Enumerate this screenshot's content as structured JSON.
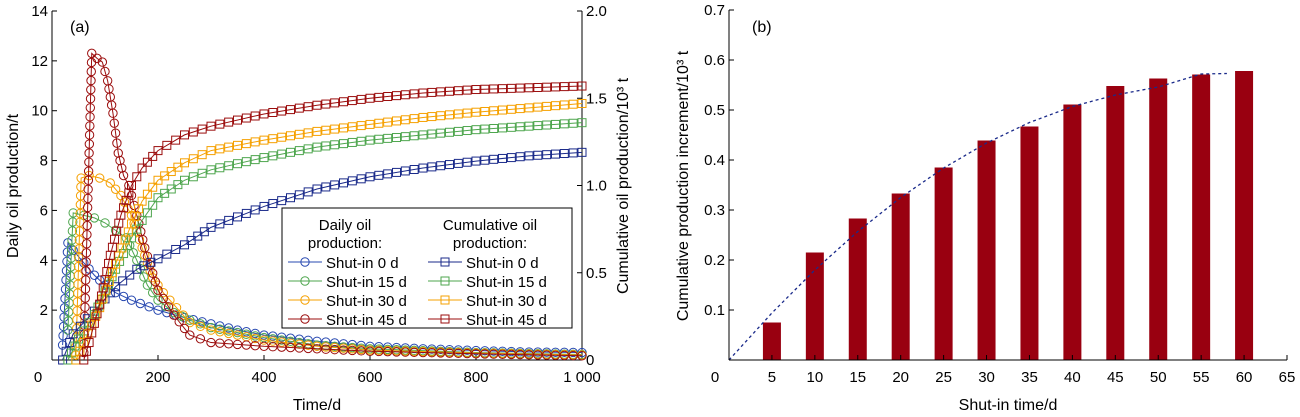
{
  "chart_data": [
    {
      "type": "line",
      "panel_label": "(a)",
      "xlabel": "Time/d",
      "ylabel": "Daily oil production/t",
      "y2label": "Cumulative oil production/10³ t",
      "xlim": [
        0,
        1000
      ],
      "ylim": [
        0,
        14
      ],
      "y2lim": [
        0,
        2.0
      ],
      "xticks": [
        "0",
        "200",
        "400",
        "600",
        "800",
        "1 000"
      ],
      "xtick_values": [
        0,
        200,
        400,
        600,
        800,
        1000
      ],
      "yticks": [
        "2",
        "4",
        "6",
        "8",
        "10",
        "12",
        "14"
      ],
      "ytick_values": [
        2,
        4,
        6,
        8,
        10,
        12,
        14
      ],
      "y2ticks": [
        "0",
        "0.5",
        "1.0",
        "1.5",
        "2.0"
      ],
      "y2tick_values": [
        0,
        0.5,
        1.0,
        1.5,
        2.0
      ],
      "grid": false,
      "legend": {
        "placement": "center-right",
        "daily_title_1": "Daily oil",
        "daily_title_2": "production:",
        "cum_title_1": "Cumulative oil",
        "cum_title_2": "production:"
      },
      "series": [
        {
          "name": "Shut-in 0 d",
          "group": "daily",
          "axis": "left",
          "marker": "circle",
          "color": "#2748b0",
          "x": [
            20,
            30,
            40,
            60,
            80,
            100,
            120,
            150,
            200,
            250,
            300,
            350,
            400,
            500,
            600,
            700,
            800,
            900,
            1000
          ],
          "y": [
            0.6,
            4.7,
            4.4,
            3.9,
            3.4,
            3.0,
            2.7,
            2.4,
            2.0,
            1.7,
            1.45,
            1.2,
            1.0,
            0.75,
            0.55,
            0.45,
            0.38,
            0.32,
            0.3
          ]
        },
        {
          "name": "Shut-in 15 d",
          "group": "daily",
          "axis": "left",
          "marker": "circle",
          "color": "#4ea64e",
          "x": [
            30,
            40,
            60,
            80,
            100,
            120,
            140,
            160,
            180,
            200,
            230,
            260,
            300,
            400,
            500,
            600,
            800,
            1000
          ],
          "y": [
            1.2,
            5.9,
            5.8,
            5.7,
            5.5,
            5.2,
            4.9,
            4.0,
            3.0,
            2.4,
            1.9,
            1.6,
            1.3,
            0.9,
            0.6,
            0.45,
            0.3,
            0.22
          ]
        },
        {
          "name": "Shut-in 30 d",
          "group": "daily",
          "axis": "left",
          "marker": "circle",
          "color": "#f5a000",
          "x": [
            45,
            55,
            70,
            90,
            110,
            130,
            150,
            170,
            190,
            210,
            235,
            260,
            300,
            400,
            500,
            600,
            800,
            1000
          ],
          "y": [
            0.2,
            7.3,
            7.4,
            7.3,
            7.1,
            6.6,
            5.8,
            4.5,
            3.3,
            2.7,
            2.1,
            1.5,
            1.2,
            0.8,
            0.55,
            0.4,
            0.28,
            0.2
          ]
        },
        {
          "name": "Shut-in 45 d",
          "group": "daily",
          "axis": "left",
          "marker": "circle",
          "color": "#9b0d0d",
          "x": [
            60,
            75,
            85,
            95,
            105,
            115,
            125,
            135,
            145,
            160,
            175,
            200,
            230,
            260,
            300,
            400,
            500,
            600,
            800,
            1000
          ],
          "y": [
            0.3,
            12.3,
            12.1,
            11.95,
            11.2,
            9.9,
            8.3,
            7.4,
            7.0,
            5.8,
            4.5,
            2.8,
            1.8,
            1.0,
            0.7,
            0.55,
            0.45,
            0.35,
            0.25,
            0.17
          ]
        },
        {
          "name": "Shut-in 0 d",
          "group": "cumulative",
          "axis": "right",
          "marker": "square",
          "color": "#1a2a8a",
          "x": [
            20,
            40,
            80,
            120,
            160,
            200,
            250,
            300,
            400,
            500,
            600,
            700,
            800,
            900,
            1000
          ],
          "y": [
            0,
            0.15,
            0.28,
            0.42,
            0.52,
            0.58,
            0.66,
            0.76,
            0.88,
            0.98,
            1.05,
            1.1,
            1.14,
            1.17,
            1.19
          ]
        },
        {
          "name": "Shut-in 15 d",
          "group": "cumulative",
          "axis": "right",
          "marker": "square",
          "color": "#4ea64e",
          "x": [
            30,
            50,
            80,
            120,
            150,
            170,
            200,
            250,
            300,
            400,
            500,
            600,
            700,
            800,
            1000
          ],
          "y": [
            0,
            0.12,
            0.26,
            0.52,
            0.7,
            0.8,
            0.93,
            1.03,
            1.09,
            1.16,
            1.22,
            1.26,
            1.29,
            1.32,
            1.36
          ]
        },
        {
          "name": "Shut-in 30 d",
          "group": "cumulative",
          "axis": "right",
          "marker": "square",
          "color": "#f5a000",
          "x": [
            45,
            60,
            90,
            120,
            150,
            170,
            200,
            250,
            300,
            400,
            500,
            600,
            700,
            800,
            1000
          ],
          "y": [
            0,
            0.1,
            0.3,
            0.55,
            0.78,
            0.91,
            1.03,
            1.13,
            1.2,
            1.26,
            1.31,
            1.35,
            1.39,
            1.42,
            1.47
          ]
        },
        {
          "name": "Shut-in 45 d",
          "group": "cumulative",
          "axis": "right",
          "marker": "square",
          "color": "#9b0d0d",
          "x": [
            60,
            70,
            90,
            110,
            130,
            150,
            170,
            200,
            250,
            300,
            400,
            500,
            600,
            700,
            800,
            1000
          ],
          "y": [
            0,
            0.1,
            0.32,
            0.6,
            0.83,
            1.0,
            1.1,
            1.2,
            1.29,
            1.34,
            1.41,
            1.46,
            1.5,
            1.53,
            1.55,
            1.57
          ]
        }
      ]
    },
    {
      "type": "bar",
      "panel_label": "(b)",
      "xlabel": "Shut-in time/d",
      "ylabel": "Cumulative production increment/10³ t",
      "xlim": [
        0,
        65
      ],
      "ylim": [
        0,
        0.7
      ],
      "xticks": [
        "0",
        "5",
        "10",
        "15",
        "20",
        "25",
        "30",
        "35",
        "40",
        "45",
        "50",
        "55",
        "60",
        "65"
      ],
      "xtick_values": [
        0,
        5,
        10,
        15,
        20,
        25,
        30,
        35,
        40,
        45,
        50,
        55,
        60,
        65
      ],
      "yticks": [
        "0.1",
        "0.2",
        "0.3",
        "0.4",
        "0.5",
        "0.6",
        "0.7"
      ],
      "ytick_values": [
        0.1,
        0.2,
        0.3,
        0.4,
        0.5,
        0.6,
        0.7
      ],
      "grid": false,
      "bar_color": "#990010",
      "categories": [
        5,
        10,
        15,
        20,
        25,
        30,
        35,
        40,
        45,
        50,
        55,
        60
      ],
      "values": [
        0.075,
        0.215,
        0.283,
        0.333,
        0.385,
        0.439,
        0.467,
        0.511,
        0.548,
        0.563,
        0.571,
        0.578
      ],
      "trend": {
        "style": "dashed",
        "color": "#1a2a8a",
        "x": [
          0,
          5,
          10,
          15,
          20,
          25,
          30,
          35,
          40,
          45,
          50,
          55,
          58
        ],
        "y": [
          0,
          0.094,
          0.18,
          0.257,
          0.325,
          0.384,
          0.434,
          0.475,
          0.507,
          0.53,
          0.546,
          0.572,
          0.573
        ]
      }
    }
  ]
}
